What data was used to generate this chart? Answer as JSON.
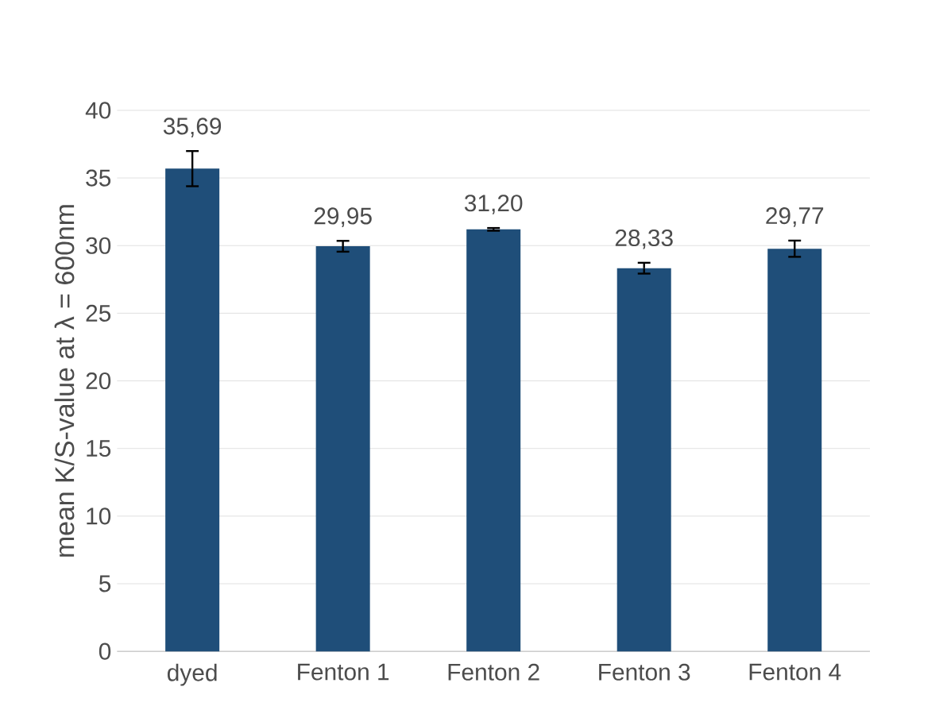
{
  "chart_data": {
    "type": "bar",
    "ylabel": "mean K/S-value at λ = 600nm",
    "categories": [
      "dyed",
      "Fenton 1",
      "Fenton 2",
      "Fenton 3",
      "Fenton 4"
    ],
    "values": [
      35.69,
      29.95,
      31.2,
      28.33,
      29.77
    ],
    "errors": [
      1.3,
      0.4,
      0.1,
      0.4,
      0.6
    ],
    "value_labels": [
      "35,69",
      "29,95",
      "31,20",
      "28,33",
      "29,77"
    ],
    "color": "#1f4e79",
    "ylim": [
      0,
      40
    ],
    "yticks": [
      0,
      5,
      10,
      15,
      20,
      25,
      30,
      35,
      40
    ],
    "grid": "y"
  }
}
